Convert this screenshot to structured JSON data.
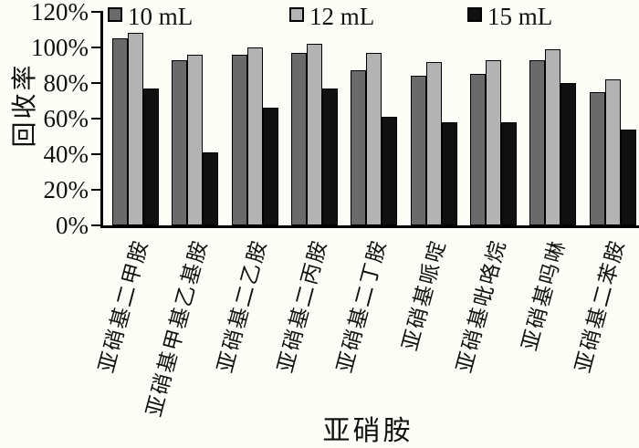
{
  "chart_data": {
    "type": "bar",
    "title": "",
    "xlabel": "亚硝胺",
    "ylabel": "回收率",
    "ylim": [
      0,
      120
    ],
    "ytick_labels": [
      "0%",
      "20%",
      "40%",
      "60%",
      "80%",
      "100%",
      "120%"
    ],
    "grid": false,
    "legend_position": "top",
    "categories": [
      "亚硝基二甲胺",
      "亚硝基甲基乙基胺",
      "亚硝基二乙胺",
      "亚硝基二丙胺",
      "亚硝基二丁胺",
      "亚硝基哌啶",
      "亚硝基吡咯烷",
      "亚硝基吗啉",
      "亚硝基二苯胺"
    ],
    "series": [
      {
        "name": "10 mL",
        "color": "#6a6a6a",
        "values": [
          105,
          93,
          96,
          97,
          87,
          84,
          85,
          93,
          75
        ]
      },
      {
        "name": "12 mL",
        "color": "#b3b3b3",
        "values": [
          108,
          96,
          100,
          102,
          97,
          92,
          93,
          99,
          82
        ]
      },
      {
        "name": "15 mL",
        "color": "#101010",
        "values": [
          77,
          41,
          66,
          77,
          61,
          58,
          58,
          80,
          54
        ]
      }
    ]
  }
}
